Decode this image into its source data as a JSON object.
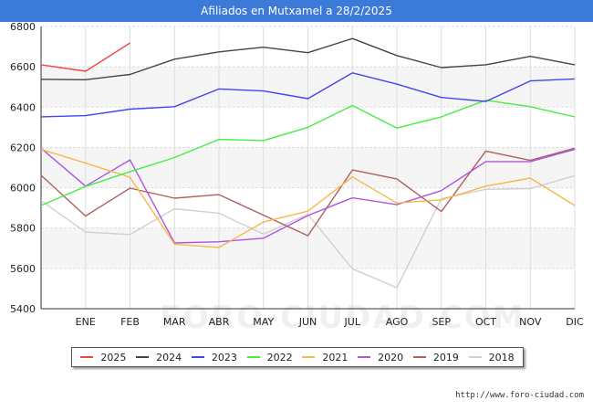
{
  "title": "Afiliados en Mutxamel a 28/2/2025",
  "watermark": "FORO-CIUDAD.COM",
  "source": "http://www.foro-ciudad.com",
  "chart_data": {
    "type": "line",
    "title": "Afiliados en Mutxamel a 28/2/2025",
    "categories": [
      "",
      "ENE",
      "FEB",
      "MAR",
      "ABR",
      "MAY",
      "JUN",
      "JUL",
      "AGO",
      "SEP",
      "OCT",
      "NOV",
      "DIC"
    ],
    "ylim": [
      5400,
      6800
    ],
    "yticks": [
      5400,
      5600,
      5800,
      6000,
      6200,
      6400,
      6600,
      6800
    ],
    "grid": true,
    "legend_position": "bottom",
    "series": [
      {
        "name": "2025",
        "color": "#ee4444",
        "values": [
          6610,
          6578,
          6718,
          null,
          null,
          null,
          null,
          null,
          null,
          null,
          null,
          null,
          null
        ]
      },
      {
        "name": "2024",
        "color": "#444444",
        "values": [
          6538,
          6536,
          6562,
          6638,
          6674,
          6697,
          6670,
          6740,
          6656,
          6596,
          6610,
          6652,
          6610
        ]
      },
      {
        "name": "2023",
        "color": "#4444ee",
        "values": [
          6352,
          6358,
          6390,
          6402,
          6490,
          6480,
          6442,
          6570,
          6514,
          6448,
          6428,
          6530,
          6540
        ]
      },
      {
        "name": "2022",
        "color": "#44ee44",
        "values": [
          5912,
          6006,
          6080,
          6150,
          6240,
          6234,
          6300,
          6408,
          6296,
          6352,
          6434,
          6402,
          6352
        ]
      },
      {
        "name": "2021",
        "color": "#f7b84a",
        "values": [
          6190,
          6122,
          6052,
          5720,
          5704,
          5830,
          5884,
          6054,
          5924,
          5940,
          6008,
          6048,
          5912
        ]
      },
      {
        "name": "2020",
        "color": "#b055e0",
        "values": [
          6196,
          6008,
          6138,
          5726,
          5732,
          5750,
          5862,
          5950,
          5916,
          5986,
          6130,
          6130,
          6190
        ]
      },
      {
        "name": "2019",
        "color": "#b05f5f",
        "values": [
          6062,
          5860,
          5998,
          5948,
          5966,
          5864,
          5762,
          6088,
          6044,
          5882,
          6182,
          6136,
          6196
        ]
      },
      {
        "name": "2018",
        "color": "#d0d0d0",
        "values": [
          5936,
          5780,
          5768,
          5896,
          5874,
          5770,
          5868,
          5598,
          5504,
          5946,
          5992,
          5996,
          6060
        ]
      }
    ]
  }
}
